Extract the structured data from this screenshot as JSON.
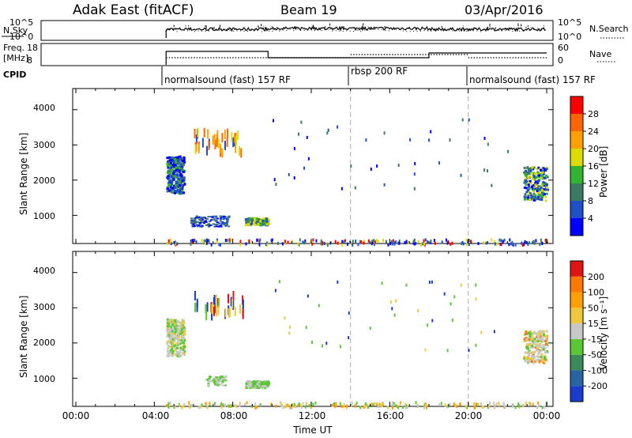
{
  "header": {
    "title_left": "Adak East (fitACF)",
    "title_center": "Beam 19",
    "title_right": "03/Apr/2016"
  },
  "noise_panel": {
    "left_label": "N.Sky",
    "right_label": "N.Search",
    "left_ticks": [
      "10^5",
      "10^0"
    ],
    "right_ticks": [
      "10^5",
      "10^0"
    ]
  },
  "freq_panel": {
    "left_label_line1": "Freq.",
    "left_label_line2": "[MHz]",
    "right_label": "Nave",
    "left_ticks": [
      "18",
      "8"
    ],
    "right_ticks": [
      "60",
      "0"
    ]
  },
  "cpid": {
    "label": "CPID",
    "modes": [
      {
        "label": "normalsound (fast) 157 RF",
        "start_hour": 4.8,
        "end_hour": 14.0
      },
      {
        "label": "rbsp 200 RF",
        "start_hour": 14.0,
        "end_hour": 20.0
      },
      {
        "label": "normalsound (fast) 157 RF",
        "start_hour": 20.0,
        "end_hour": 24.0
      }
    ]
  },
  "x_axis": {
    "label": "Time UT",
    "ticks": [
      "00:00",
      "04:00",
      "08:00",
      "12:00",
      "16:00",
      "20:00",
      "00:00"
    ],
    "tick_hours": [
      0,
      4,
      8,
      12,
      16,
      20,
      24
    ]
  },
  "power_panel": {
    "ylabel": "Slant Range [km]",
    "yticks": [
      "4000",
      "3000",
      "2000",
      "1000"
    ],
    "colorbar_label": "Power [dB]",
    "colorbar_ticks": [
      "28",
      "24",
      "20",
      "16",
      "12",
      "8",
      "4"
    ],
    "colors": [
      "#0000ff",
      "#2050c8",
      "#3c7a64",
      "#32b432",
      "#dcdc00",
      "#ffa000",
      "#ff6400",
      "#ff0000"
    ]
  },
  "velocity_panel": {
    "ylabel": "Slant Range [km]",
    "yticks": [
      "4000",
      "3000",
      "2000",
      "1000"
    ],
    "colorbar_label": "Velocity [m s⁻¹]",
    "colorbar_ticks": [
      "200",
      "100",
      "50",
      "15",
      "-15",
      "-50",
      "-100",
      "-200"
    ],
    "colors": [
      "#1a3ccc",
      "#2a64a0",
      "#3a8a5a",
      "#5ac832",
      "#c8c8c8",
      "#f0c83c",
      "#ffa000",
      "#ff7800",
      "#e01414"
    ]
  },
  "chart_data": {
    "type": "heatmap",
    "x_range_hours": [
      0,
      24
    ],
    "y_range_km": [
      200,
      4600
    ],
    "mode_boundaries_hours": [
      14.0,
      20.0
    ],
    "echo_regions": [
      {
        "t_start": 4.6,
        "t_end": 5.4,
        "r_start": 1600,
        "r_end": 2700,
        "power_db": "4-16",
        "velocity": "-15 to 15"
      },
      {
        "t_start": 6.0,
        "t_end": 7.8,
        "r_start": 700,
        "r_end": 1000,
        "power_db": "4-8",
        "velocity": "15-50"
      },
      {
        "t_start": 8.6,
        "t_end": 9.8,
        "r_start": 750,
        "r_end": 950,
        "power_db": "4-16",
        "velocity": "15-50"
      },
      {
        "t_start": 22.8,
        "t_end": 24.0,
        "r_start": 1450,
        "r_end": 2400,
        "power_db": "4-16",
        "velocity": "-15 to 15"
      },
      {
        "t_start": 4.6,
        "t_end": 24.0,
        "r_start": 200,
        "r_end": 350,
        "power_db": "4-28",
        "velocity": "-200 to 200"
      }
    ]
  }
}
